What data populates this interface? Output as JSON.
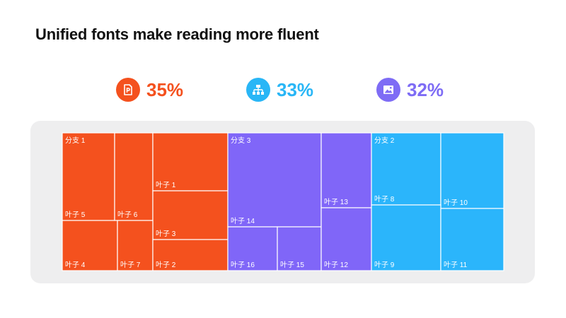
{
  "title": "Unified fonts make reading more fluent",
  "stats": [
    {
      "value": "35%",
      "color": "#f4511e",
      "icon": "ppt-file-icon"
    },
    {
      "value": "33%",
      "color": "#29b6f6",
      "icon": "org-chart-icon"
    },
    {
      "value": "32%",
      "color": "#7e6cf5",
      "icon": "image-icon"
    }
  ],
  "chart_data": {
    "type": "treemap",
    "branches": [
      {
        "name": "分支 1",
        "color": "#f4511e",
        "leaves": [
          "叶子 5",
          "叶子 6",
          "叶子 1",
          "叶子 3",
          "叶子 4",
          "叶子 7",
          "叶子 2"
        ]
      },
      {
        "name": "分支 3",
        "color": "#8066f8",
        "leaves": [
          "叶子 14",
          "叶子 13",
          "叶子 16",
          "叶子 15",
          "叶子 12"
        ]
      },
      {
        "name": "分支 2",
        "color": "#2bb5fb",
        "leaves": [
          "叶子 8",
          "叶子 10",
          "叶子 9",
          "叶子 11"
        ]
      }
    ]
  }
}
